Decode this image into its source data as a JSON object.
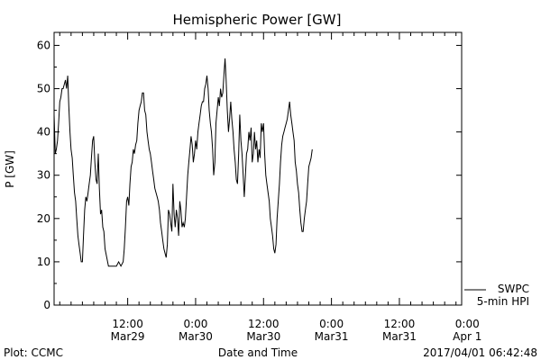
{
  "chart_data": {
    "type": "line",
    "title": "Hemispheric Power [GW]",
    "ylabel": "P [GW]",
    "xlabel": "Date and Time",
    "ylim": [
      0,
      63
    ],
    "yticks": [
      0,
      10,
      20,
      30,
      40,
      50,
      60
    ],
    "xlim": [
      0,
      72
    ],
    "xunit": "hours since 2017/03/28 23:00",
    "xticks": [
      {
        "t": 13,
        "time": "12:00",
        "date": "Mar29"
      },
      {
        "t": 25,
        "time": "0:00",
        "date": "Mar30"
      },
      {
        "t": 37,
        "time": "12:00",
        "date": "Mar30"
      },
      {
        "t": 49,
        "time": "0:00",
        "date": "Mar31"
      },
      {
        "t": 61,
        "time": "12:00",
        "date": "Mar31"
      },
      {
        "t": 73,
        "time": "0:00",
        "date": "Apr 1"
      }
    ],
    "series": [
      {
        "name": "5-min HPI",
        "points": [
          [
            0,
            44
          ],
          [
            0.2,
            35
          ],
          [
            0.4,
            36
          ],
          [
            0.6,
            38
          ],
          [
            0.8,
            42
          ],
          [
            1.0,
            47
          ],
          [
            1.2,
            48
          ],
          [
            1.4,
            50
          ],
          [
            1.6,
            50
          ],
          [
            1.8,
            51
          ],
          [
            2.0,
            52
          ],
          [
            2.2,
            50
          ],
          [
            2.4,
            53
          ],
          [
            2.6,
            46
          ],
          [
            2.8,
            40
          ],
          [
            3.0,
            36
          ],
          [
            3.2,
            34
          ],
          [
            3.4,
            30
          ],
          [
            3.6,
            26
          ],
          [
            3.8,
            24
          ],
          [
            4.0,
            20
          ],
          [
            4.2,
            16
          ],
          [
            4.4,
            14
          ],
          [
            4.6,
            12
          ],
          [
            4.8,
            10
          ],
          [
            5.0,
            10
          ],
          [
            5.2,
            16
          ],
          [
            5.4,
            22
          ],
          [
            5.6,
            25
          ],
          [
            5.8,
            24
          ],
          [
            6.0,
            26
          ],
          [
            6.2,
            28
          ],
          [
            6.4,
            30
          ],
          [
            6.6,
            34
          ],
          [
            6.8,
            38
          ],
          [
            7.0,
            39
          ],
          [
            7.2,
            33
          ],
          [
            7.4,
            29
          ],
          [
            7.6,
            28
          ],
          [
            7.8,
            35
          ],
          [
            8.0,
            27
          ],
          [
            8.2,
            21
          ],
          [
            8.4,
            22
          ],
          [
            8.6,
            18
          ],
          [
            8.8,
            17
          ],
          [
            9.0,
            13
          ],
          [
            9.3,
            11
          ],
          [
            9.6,
            9
          ],
          [
            10.0,
            9
          ],
          [
            10.5,
            9
          ],
          [
            11.0,
            9
          ],
          [
            11.4,
            10
          ],
          [
            11.8,
            9
          ],
          [
            12.2,
            10
          ],
          [
            12.4,
            13
          ],
          [
            12.6,
            18
          ],
          [
            12.8,
            24
          ],
          [
            13.0,
            25
          ],
          [
            13.2,
            23
          ],
          [
            13.4,
            28
          ],
          [
            13.6,
            32
          ],
          [
            13.8,
            33
          ],
          [
            14.0,
            36
          ],
          [
            14.2,
            35
          ],
          [
            14.4,
            37
          ],
          [
            14.6,
            38
          ],
          [
            14.8,
            42
          ],
          [
            15.0,
            45
          ],
          [
            15.2,
            46
          ],
          [
            15.4,
            47
          ],
          [
            15.6,
            49
          ],
          [
            15.8,
            49
          ],
          [
            16.0,
            45
          ],
          [
            16.2,
            44
          ],
          [
            16.4,
            40
          ],
          [
            16.6,
            38
          ],
          [
            16.8,
            36
          ],
          [
            17.0,
            35
          ],
          [
            17.2,
            33
          ],
          [
            17.4,
            31
          ],
          [
            17.6,
            29
          ],
          [
            17.8,
            27
          ],
          [
            18.0,
            26
          ],
          [
            18.2,
            25
          ],
          [
            18.4,
            24
          ],
          [
            18.6,
            22
          ],
          [
            18.8,
            19
          ],
          [
            19.0,
            17
          ],
          [
            19.2,
            15
          ],
          [
            19.4,
            13
          ],
          [
            19.6,
            12
          ],
          [
            19.8,
            11
          ],
          [
            20.0,
            14
          ],
          [
            20.2,
            22
          ],
          [
            20.4,
            21
          ],
          [
            20.6,
            19
          ],
          [
            20.8,
            17
          ],
          [
            21.0,
            28
          ],
          [
            21.2,
            21
          ],
          [
            21.4,
            18
          ],
          [
            21.6,
            22
          ],
          [
            21.8,
            20
          ],
          [
            22.0,
            16
          ],
          [
            22.2,
            24
          ],
          [
            22.4,
            22
          ],
          [
            22.6,
            18
          ],
          [
            22.8,
            19
          ],
          [
            23.0,
            18
          ],
          [
            23.2,
            20
          ],
          [
            23.4,
            25
          ],
          [
            23.6,
            30
          ],
          [
            23.8,
            33
          ],
          [
            24.0,
            36
          ],
          [
            24.2,
            39
          ],
          [
            24.4,
            37
          ],
          [
            24.6,
            33
          ],
          [
            24.8,
            35
          ],
          [
            25.0,
            38
          ],
          [
            25.2,
            36
          ],
          [
            25.4,
            40
          ],
          [
            25.6,
            42
          ],
          [
            25.8,
            44
          ],
          [
            26.0,
            46
          ],
          [
            26.2,
            47
          ],
          [
            26.4,
            47
          ],
          [
            26.6,
            50
          ],
          [
            26.8,
            51
          ],
          [
            27.0,
            53
          ],
          [
            27.2,
            50
          ],
          [
            27.4,
            45
          ],
          [
            27.6,
            42
          ],
          [
            27.8,
            40
          ],
          [
            28.0,
            36
          ],
          [
            28.2,
            30
          ],
          [
            28.4,
            33
          ],
          [
            28.6,
            42
          ],
          [
            28.8,
            45
          ],
          [
            29.0,
            48
          ],
          [
            29.2,
            46
          ],
          [
            29.4,
            50
          ],
          [
            29.6,
            48
          ],
          [
            29.8,
            49
          ],
          [
            30.0,
            53
          ],
          [
            30.2,
            57
          ],
          [
            30.4,
            52
          ],
          [
            30.6,
            45
          ],
          [
            30.8,
            40
          ],
          [
            31.0,
            43
          ],
          [
            31.2,
            47
          ],
          [
            31.4,
            43
          ],
          [
            31.6,
            40
          ],
          [
            31.8,
            36
          ],
          [
            32.0,
            33
          ],
          [
            32.2,
            29
          ],
          [
            32.4,
            28
          ],
          [
            32.6,
            35
          ],
          [
            32.8,
            44
          ],
          [
            33.0,
            38
          ],
          [
            33.2,
            35
          ],
          [
            33.4,
            30
          ],
          [
            33.6,
            25
          ],
          [
            33.8,
            30
          ],
          [
            34.0,
            35
          ],
          [
            34.2,
            36
          ],
          [
            34.4,
            40
          ],
          [
            34.6,
            38
          ],
          [
            34.8,
            41
          ],
          [
            35.0,
            33
          ],
          [
            35.2,
            35
          ],
          [
            35.4,
            40
          ],
          [
            35.6,
            36
          ],
          [
            35.8,
            38
          ],
          [
            36.0,
            33
          ],
          [
            36.2,
            36
          ],
          [
            36.4,
            34
          ],
          [
            36.6,
            42
          ],
          [
            36.8,
            40
          ],
          [
            37.0,
            42
          ],
          [
            37.2,
            35
          ],
          [
            37.4,
            30
          ],
          [
            37.6,
            28
          ],
          [
            37.8,
            26
          ],
          [
            38.0,
            24
          ],
          [
            38.2,
            20
          ],
          [
            38.4,
            18
          ],
          [
            38.6,
            16
          ],
          [
            38.8,
            13
          ],
          [
            39.0,
            12
          ],
          [
            39.2,
            14
          ],
          [
            39.4,
            20
          ],
          [
            39.6,
            24
          ],
          [
            39.8,
            28
          ],
          [
            40.0,
            33
          ],
          [
            40.2,
            37
          ],
          [
            40.4,
            39
          ],
          [
            40.6,
            40
          ],
          [
            40.8,
            41
          ],
          [
            41.0,
            42
          ],
          [
            41.2,
            43
          ],
          [
            41.4,
            45
          ],
          [
            41.6,
            47
          ],
          [
            41.8,
            44
          ],
          [
            42.0,
            42
          ],
          [
            42.2,
            40
          ],
          [
            42.4,
            38
          ],
          [
            42.6,
            33
          ],
          [
            42.8,
            31
          ],
          [
            43.0,
            28
          ],
          [
            43.2,
            26
          ],
          [
            43.4,
            22
          ],
          [
            43.6,
            19
          ],
          [
            43.8,
            17
          ],
          [
            44.0,
            17
          ],
          [
            44.2,
            20
          ],
          [
            44.4,
            22
          ],
          [
            44.6,
            24
          ],
          [
            44.8,
            28
          ],
          [
            45.0,
            32
          ],
          [
            45.2,
            33
          ],
          [
            45.4,
            34
          ],
          [
            45.6,
            36
          ]
        ]
      },
      {
        "name": "SWPC",
        "points": []
      }
    ],
    "legend": [
      "SWPC",
      "5-min HPI"
    ],
    "grid": false
  },
  "footer": {
    "plot_credit": "Plot: CCMC",
    "timestamp": "2017/04/01 06:42:48"
  },
  "colors": {
    "line": "#000000",
    "background": "#ffffff"
  }
}
